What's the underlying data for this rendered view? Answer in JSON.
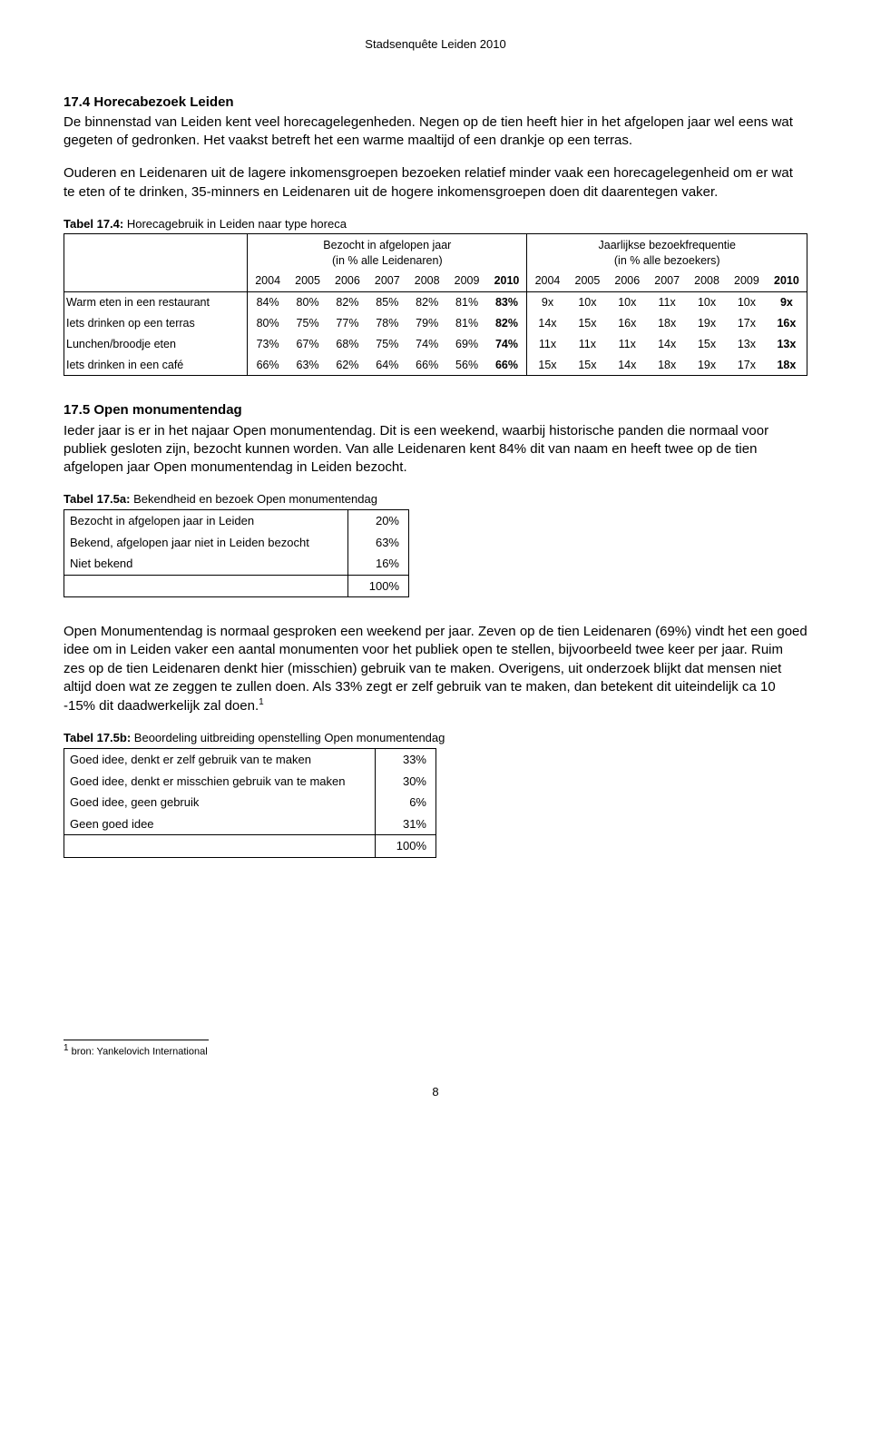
{
  "header": "Stadsenquête Leiden 2010",
  "section174": {
    "heading": "17.4 Horecabezoek Leiden",
    "para1": "De binnenstad van Leiden kent veel horecagelegenheden. Negen op de tien heeft hier in het afgelopen jaar wel eens wat gegeten of gedronken. Het vaakst betreft het een warme maaltijd of een drankje op een terras.",
    "para2": "Ouderen en Leidenaren uit de lagere inkomensgroepen bezoeken relatief minder vaak een horecagelegenheid om er wat te eten of te drinken, 35-minners en Leidenaren uit de hogere inkomensgroepen doen dit daarentegen vaker."
  },
  "table174": {
    "caption_bold": "Tabel 17.4:",
    "caption_rest": " Horecagebruik in Leiden naar type horeca",
    "group1_line1": "Bezocht in afgelopen jaar",
    "group1_line2": "(in % alle Leidenaren)",
    "group2_line1": "Jaarlijkse bezoekfrequentie",
    "group2_line2": "(in % alle bezoekers)",
    "years": [
      "2004",
      "2005",
      "2006",
      "2007",
      "2008",
      "2009",
      "2010",
      "2004",
      "2005",
      "2006",
      "2007",
      "2008",
      "2009",
      "2010"
    ],
    "rows": [
      {
        "label": "Warm eten in een restaurant",
        "cells": [
          "84%",
          "80%",
          "82%",
          "85%",
          "82%",
          "81%",
          "83%",
          "9x",
          "10x",
          "10x",
          "11x",
          "10x",
          "10x",
          "9x"
        ]
      },
      {
        "label": "Iets drinken op een terras",
        "cells": [
          "80%",
          "75%",
          "77%",
          "78%",
          "79%",
          "81%",
          "82%",
          "14x",
          "15x",
          "16x",
          "18x",
          "19x",
          "17x",
          "16x"
        ]
      },
      {
        "label": "Lunchen/broodje eten",
        "cells": [
          "73%",
          "67%",
          "68%",
          "75%",
          "74%",
          "69%",
          "74%",
          "11x",
          "11x",
          "11x",
          "14x",
          "15x",
          "13x",
          "13x"
        ]
      },
      {
        "label": "Iets drinken in een café",
        "cells": [
          "66%",
          "63%",
          "62%",
          "64%",
          "66%",
          "56%",
          "66%",
          "15x",
          "15x",
          "14x",
          "18x",
          "19x",
          "17x",
          "18x"
        ]
      }
    ]
  },
  "section175": {
    "heading": "17.5 Open monumentendag",
    "para1": "Ieder jaar is er in het najaar Open monumentendag. Dit is een weekend, waarbij historische panden die normaal voor publiek gesloten zijn, bezocht kunnen worden. Van alle Leidenaren kent 84% dit van naam en heeft twee op de tien afgelopen jaar Open monumentendag in Leiden bezocht."
  },
  "table175a": {
    "caption_bold": "Tabel 17.5a:",
    "caption_rest": " Bekendheid en bezoek Open monumentendag",
    "rows": [
      {
        "label": "Bezocht in afgelopen jaar in Leiden",
        "value": "20%"
      },
      {
        "label": "Bekend, afgelopen jaar niet in Leiden bezocht",
        "value": "63%"
      },
      {
        "label": "Niet bekend",
        "value": "16%"
      }
    ],
    "total": "100%"
  },
  "para_mid": "Open Monumentendag is normaal gesproken een weekend per jaar. Zeven op de tien Leidenaren (69%) vindt het een goed idee om in Leiden vaker een aantal monumenten voor het publiek open te stellen, bijvoorbeeld twee keer per jaar. Ruim zes op de tien Leidenaren denkt hier (misschien) gebruik van te maken. Overigens, uit onderzoek blijkt dat mensen niet altijd doen wat ze zeggen te zullen doen. Als 33% zegt er zelf gebruik van te maken, dan betekent dit uiteindelijk ca 10 -15% dit daadwerkelijk zal doen.",
  "footnote_ref": "1",
  "table175b": {
    "caption_bold": "Tabel 17.5b:",
    "caption_rest": " Beoordeling uitbreiding openstelling Open monumentendag",
    "rows": [
      {
        "label": "Goed idee, denkt er zelf gebruik van te maken",
        "value": "33%"
      },
      {
        "label": "Goed idee, denkt er misschien gebruik van te maken",
        "value": "30%"
      },
      {
        "label": "Goed idee, geen gebruik",
        "value": "6%"
      },
      {
        "label": "Geen goed idee",
        "value": "31%"
      }
    ],
    "total": "100%"
  },
  "footnote": " bron: Yankelovich International",
  "page_number": "8"
}
